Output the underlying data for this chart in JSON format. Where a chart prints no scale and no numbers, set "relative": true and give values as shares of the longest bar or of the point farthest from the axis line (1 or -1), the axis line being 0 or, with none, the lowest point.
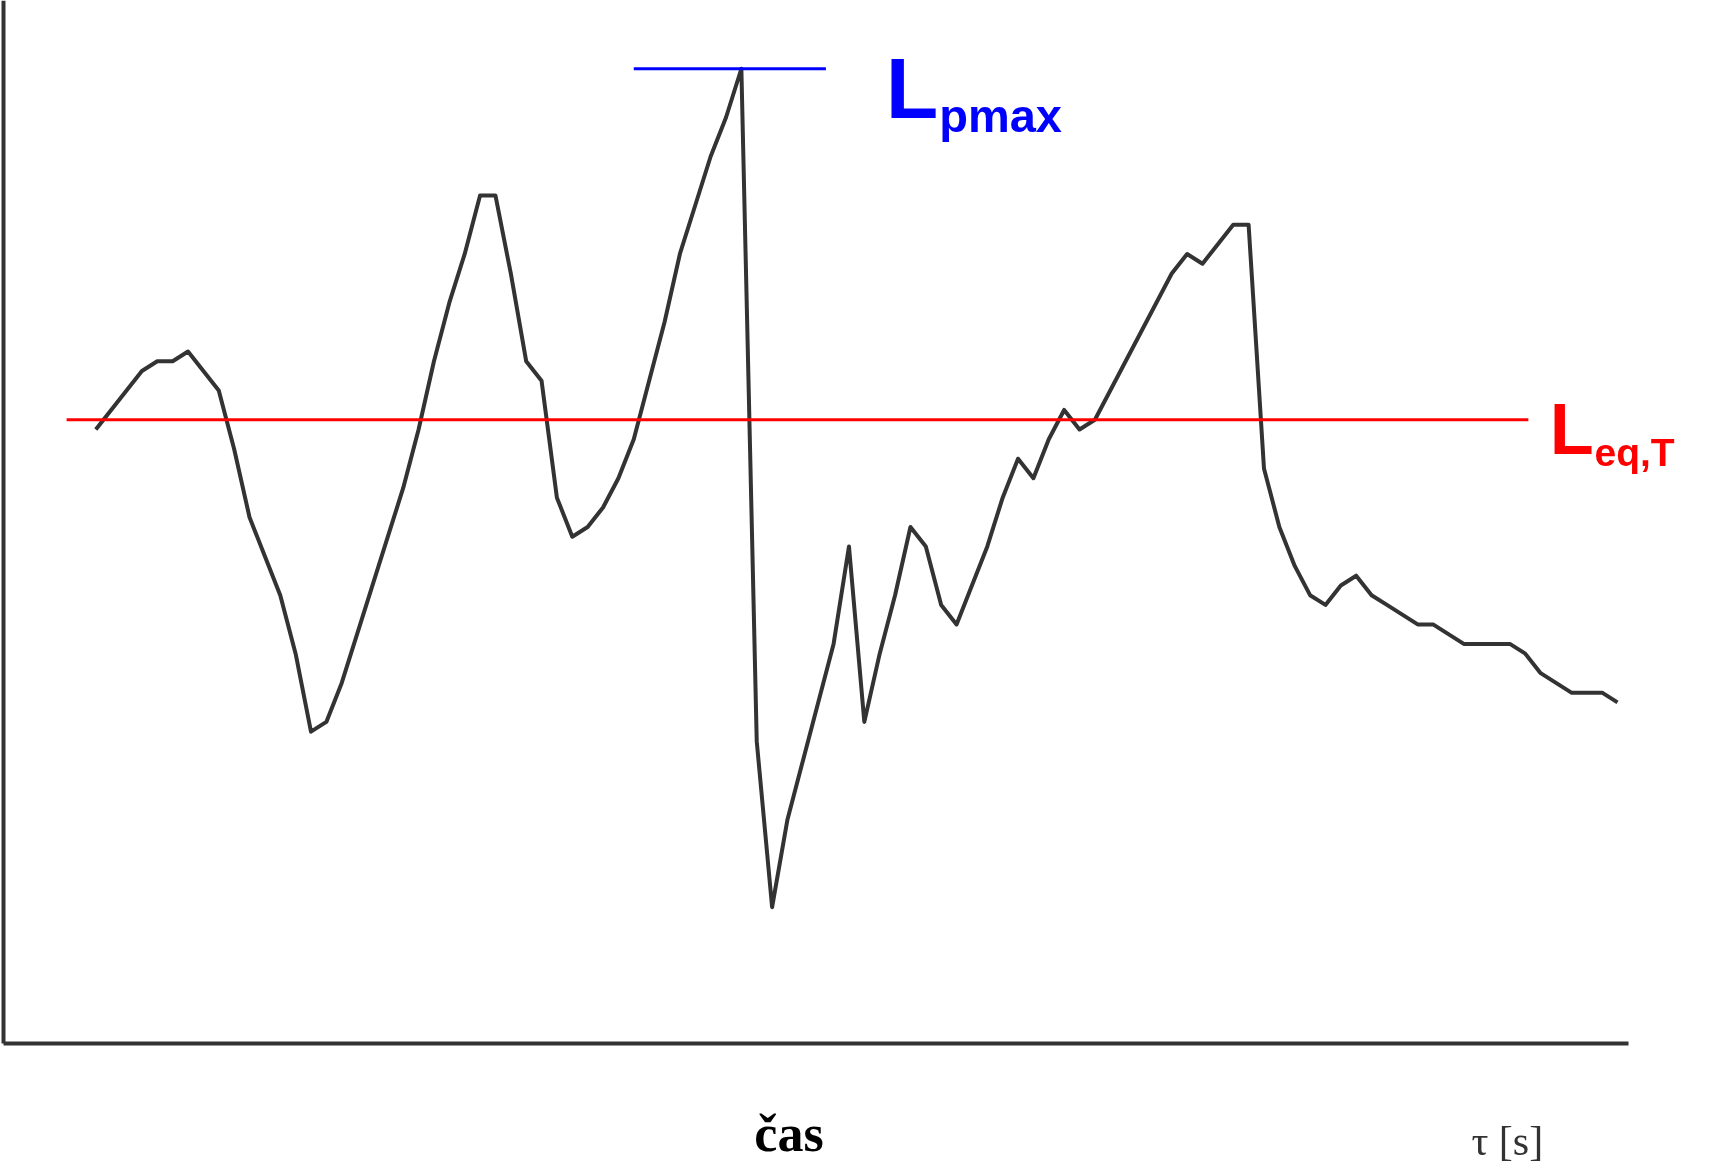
{
  "chart_data": {
    "type": "line",
    "relative": true,
    "xlabel": "čas",
    "categories": [
      null,
      null,
      null,
      null,
      null,
      null,
      null,
      null,
      null,
      null,
      null,
      null,
      null,
      null,
      null,
      null,
      null,
      null,
      null,
      null,
      null,
      null,
      null,
      null,
      null,
      null,
      null,
      null,
      null,
      null,
      null,
      null,
      null,
      null,
      null,
      null,
      null,
      null,
      null,
      null,
      null,
      null,
      null,
      null,
      null,
      null,
      null,
      null,
      null,
      null,
      null,
      null,
      null,
      null,
      null,
      null,
      null,
      null,
      null,
      null,
      null,
      null,
      null,
      null,
      null,
      null,
      null,
      null,
      null,
      null,
      null,
      null,
      null,
      null,
      null,
      null,
      null,
      null,
      null,
      null,
      null,
      null,
      null,
      null,
      null,
      null,
      null,
      null,
      null,
      null,
      null,
      null,
      null,
      null,
      null,
      null,
      null,
      null,
      null,
      null
    ],
    "series": [
      {
        "color": "#333333",
        "values": [
          0.63,
          0.65,
          0.67,
          0.69,
          0.7,
          0.7,
          0.71,
          0.69,
          0.67,
          0.61,
          0.54,
          0.5,
          0.46,
          0.4,
          0.32,
          0.33,
          0.37,
          0.42,
          0.47,
          0.52,
          0.57,
          0.63,
          0.7,
          0.76,
          0.81,
          0.87,
          0.87,
          0.79,
          0.7,
          0.68,
          0.56,
          0.52,
          0.53,
          0.55,
          0.58,
          0.62,
          0.68,
          0.74,
          0.81,
          0.86,
          0.91,
          0.95,
          1.0,
          0.31,
          0.14,
          0.23,
          0.29,
          0.35,
          0.41,
          0.51,
          0.33,
          0.4,
          0.46,
          0.53,
          0.51,
          0.45,
          0.43,
          0.47,
          0.51,
          0.56,
          0.6,
          0.58,
          0.62,
          0.65,
          0.63,
          0.64,
          0.67,
          0.7,
          0.73,
          0.76,
          0.79,
          0.81,
          0.8,
          0.82,
          0.84,
          0.84,
          0.59,
          0.53,
          0.49,
          0.46,
          0.45,
          0.47,
          0.48,
          0.46,
          0.45,
          0.44,
          0.43,
          0.43,
          0.42,
          0.41,
          0.41,
          0.41,
          0.41,
          0.4,
          0.38,
          0.37,
          0.36,
          0.36,
          0.36,
          0.35
        ]
      }
    ],
    "ref_lines": [
      {
        "axis": "y",
        "value": 0.64,
        "label": "L$_{eq,T}$",
        "color": "#ff0000"
      },
      {
        "axis": "y",
        "value": 1.0,
        "label": "L$_{pmax}$",
        "color": "#0000ff"
      }
    ],
    "annotations": [
      "τ [s]"
    ],
    "marker": "none",
    "line_style": "solid"
  }
}
